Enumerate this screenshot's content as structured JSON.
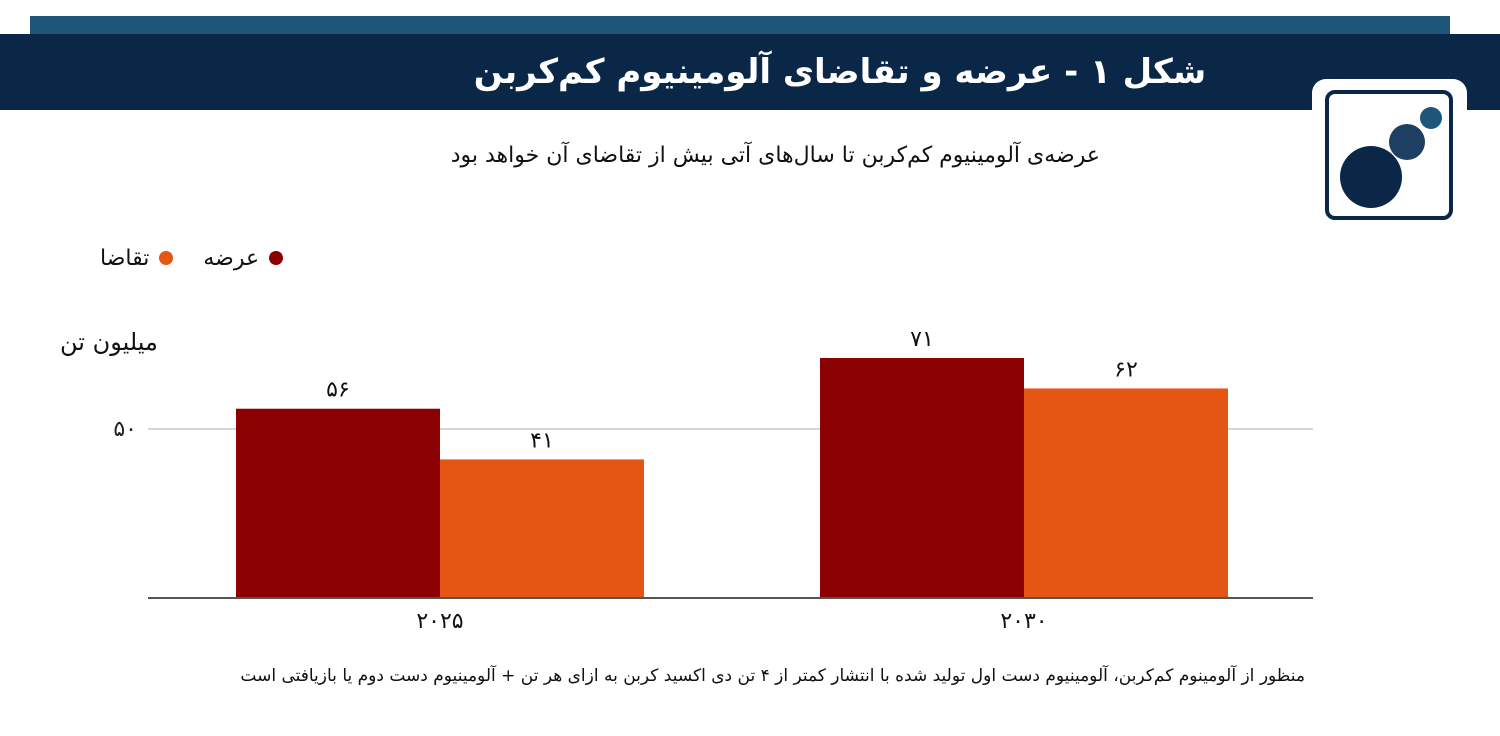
{
  "header": {
    "title": "شکل ۱ - عرضه و تقاضای آلومینیوم کم‌کربن"
  },
  "subtitle": "عرضه‌ی آلومینیوم کم‌کربن تا سال‌های آتی بیش از تقاضای آن خواهد بود",
  "footnote": "منظور از آلومینوم کم‌کربن، آلومینیوم دست اول تولید شده با انتشار کمتر از ۴ تن دی اکسید کربن به ازای هر تن + آلومینیوم دست دوم یا بازیافتی است",
  "logo": {
    "icon": "circles-logo-icon"
  },
  "colors": {
    "supply": "#8b0000",
    "demand": "#e55514",
    "header": "#0b2748",
    "strip": "#1d5679"
  },
  "chart_data": {
    "type": "bar",
    "ylabel": "میلیون تن",
    "categories": [
      "۲۰۲۵",
      "۲۰۳۰"
    ],
    "series": [
      {
        "name": "عرضه",
        "values": [
          56,
          71
        ],
        "labels": [
          "۵۶",
          "۷۱"
        ],
        "color": "#8b0000"
      },
      {
        "name": "تقاضا",
        "values": [
          41,
          62
        ],
        "labels": [
          "۴۱",
          "۶۲"
        ],
        "color": "#e55514"
      }
    ],
    "yticks": [
      50
    ],
    "ytick_labels": [
      "۵۰"
    ],
    "ylim": [
      0,
      80
    ],
    "grid": true,
    "legend_position": "top-left"
  }
}
